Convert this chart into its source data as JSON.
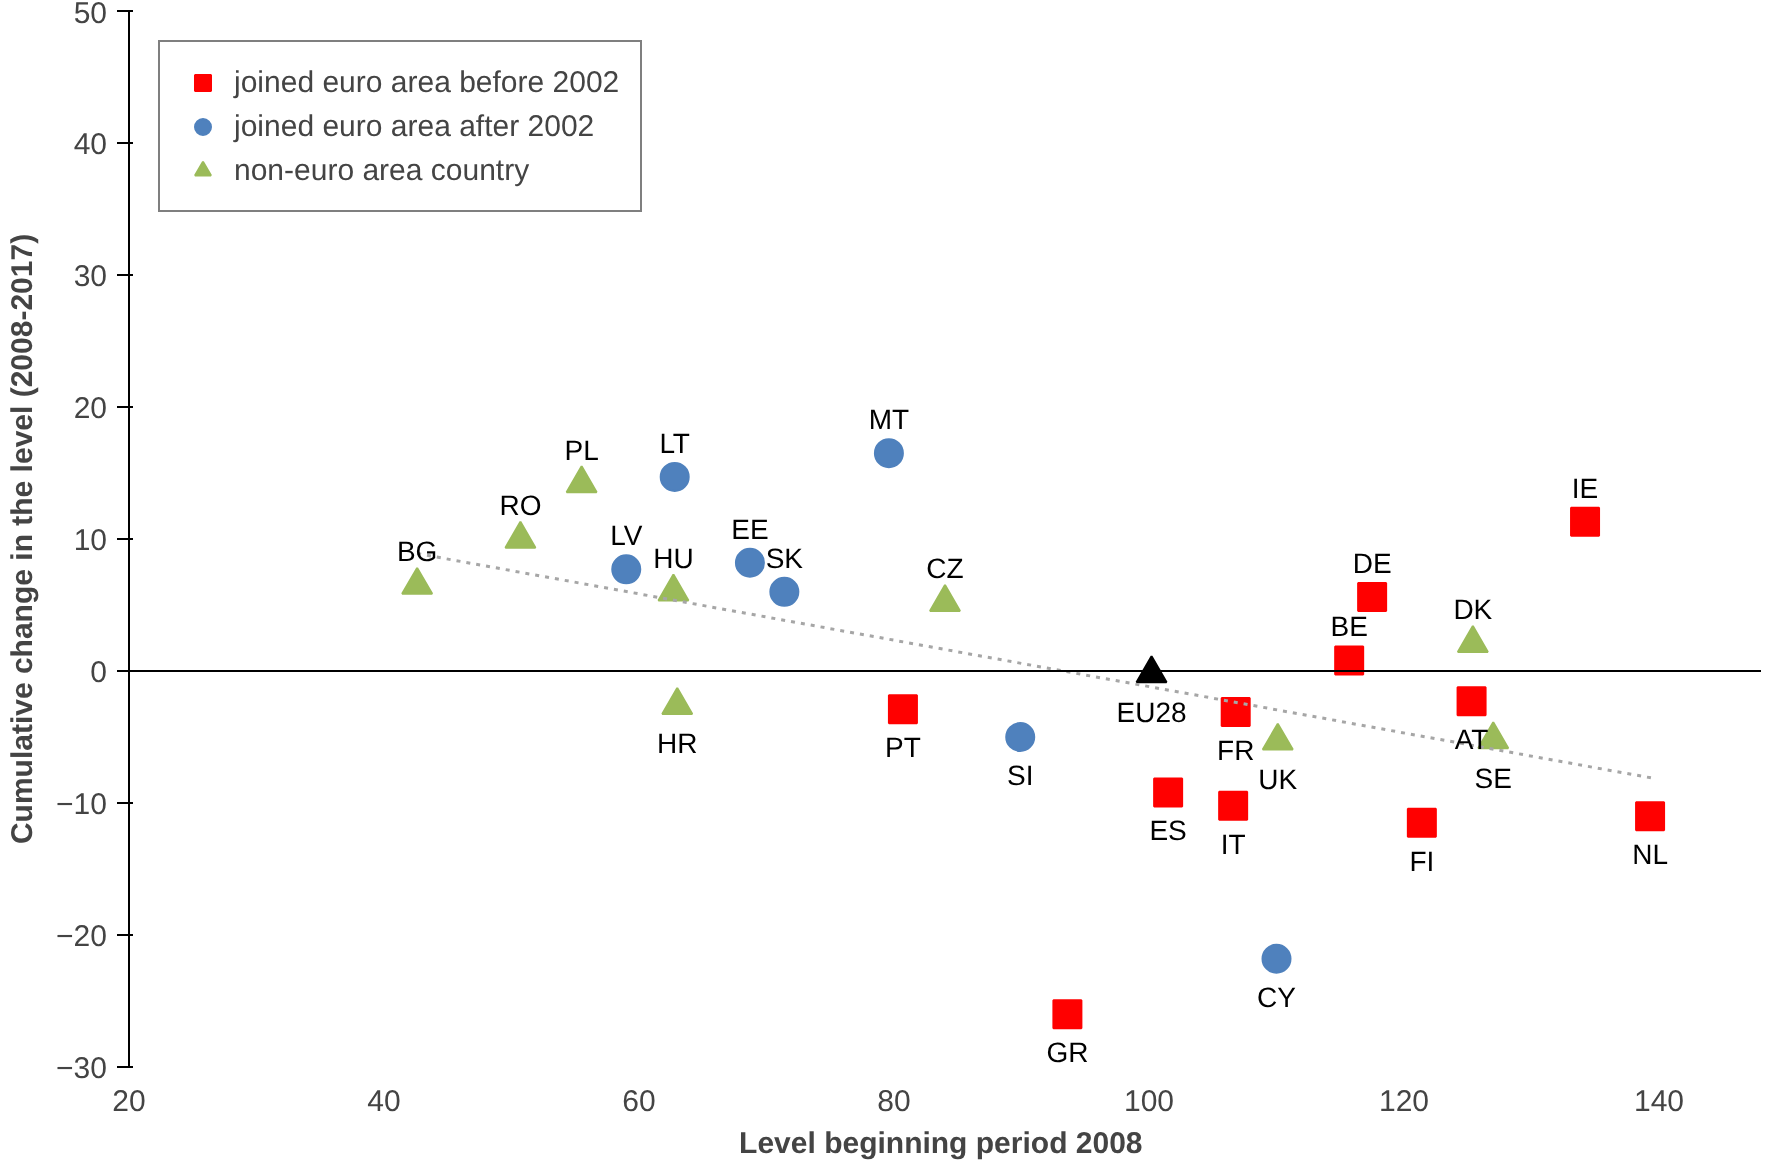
{
  "chart_data": {
    "type": "scatter",
    "xlabel": "Level beginning  period 2008",
    "ylabel": "Cumulative change in the level (2008-2017)",
    "xlim": [
      20,
      148
    ],
    "xticks": [
      20,
      40,
      60,
      80,
      100,
      120,
      140
    ],
    "ylim": [
      -30,
      50
    ],
    "yticks": [
      -30,
      -20,
      -10,
      0,
      10,
      20,
      30,
      40,
      50
    ],
    "grid": false,
    "legend": "top left",
    "ref_lines": [
      {
        "axis": "y",
        "value": 0,
        "color": "#000000"
      }
    ],
    "series": [
      {
        "name": "joined euro area before 2002",
        "color": "#ff0000",
        "marker": "square",
        "x": [
          80.7,
          93.6,
          101.5,
          106.6,
          106.8,
          115.7,
          117.5,
          121.4,
          125.3,
          134.2,
          139.3
        ],
        "values": [
          -2.9,
          -26.0,
          -9.2,
          -10.2,
          -3.1,
          0.8,
          5.6,
          -11.5,
          -2.3,
          11.3,
          -11.0
        ]
      },
      {
        "name": "joined euro area after 2002",
        "color": "#4f81bd",
        "marker": "circle",
        "x": [
          59.0,
          62.8,
          68.7,
          71.4,
          79.6,
          89.9,
          110.0
        ],
        "values": [
          7.7,
          14.7,
          8.2,
          6.0,
          16.5,
          -5.0,
          -21.8
        ]
      },
      {
        "name": "non-euro area country",
        "color": "#9bbb59",
        "marker": "triangle",
        "x": [
          42.6,
          50.7,
          55.5,
          62.7,
          63.0,
          84.0,
          110.1,
          125.4,
          127.0
        ],
        "values": [
          6.5,
          10.0,
          14.2,
          6.0,
          -2.6,
          5.2,
          -5.3,
          2.1,
          -5.2
        ]
      },
      {
        "color": "#000000",
        "marker": "triangle",
        "x": [
          100.2
        ],
        "values": [
          -0.2
        ]
      },
      {
        "type": "line",
        "color": "#a6a6a6",
        "line_style": "dotted",
        "marker": "none",
        "x": [
          42.6,
          139.4
        ],
        "values": [
          8.9,
          -8.1
        ]
      }
    ],
    "annotations": [
      {
        "text": "PT",
        "x": 80.7,
        "y": -2.9
      },
      {
        "text": "GR",
        "x": 93.6,
        "y": -26.0
      },
      {
        "text": "ES",
        "x": 101.5,
        "y": -9.2
      },
      {
        "text": "IT",
        "x": 106.6,
        "y": -10.2
      },
      {
        "text": "FR",
        "x": 106.8,
        "y": -3.1
      },
      {
        "text": "BE",
        "x": 115.7,
        "y": 0.8
      },
      {
        "text": "DE",
        "x": 117.5,
        "y": 5.6
      },
      {
        "text": "FI",
        "x": 121.4,
        "y": -11.5
      },
      {
        "text": "AT",
        "x": 125.3,
        "y": -2.3
      },
      {
        "text": "IE",
        "x": 134.2,
        "y": 11.3
      },
      {
        "text": "NL",
        "x": 139.3,
        "y": -11.0
      },
      {
        "text": "LV",
        "x": 59.0,
        "y": 7.7
      },
      {
        "text": "LT",
        "x": 62.8,
        "y": 14.7
      },
      {
        "text": "EE",
        "x": 68.7,
        "y": 8.2
      },
      {
        "text": "SK",
        "x": 71.4,
        "y": 6.0
      },
      {
        "text": "MT",
        "x": 79.6,
        "y": 16.5
      },
      {
        "text": "SI",
        "x": 89.9,
        "y": -5.0
      },
      {
        "text": "CY",
        "x": 110.0,
        "y": -21.8
      },
      {
        "text": "BG",
        "x": 42.6,
        "y": 6.5
      },
      {
        "text": "RO",
        "x": 50.7,
        "y": 10.0
      },
      {
        "text": "PL",
        "x": 55.5,
        "y": 14.2
      },
      {
        "text": "HU",
        "x": 62.7,
        "y": 6.0
      },
      {
        "text": "HR",
        "x": 63.0,
        "y": -2.6
      },
      {
        "text": "CZ",
        "x": 84.0,
        "y": 5.2
      },
      {
        "text": "UK",
        "x": 110.1,
        "y": -5.3
      },
      {
        "text": "DK",
        "x": 125.4,
        "y": 2.1
      },
      {
        "text": "SE",
        "x": 127.0,
        "y": -5.2
      },
      {
        "text": "EU28",
        "x": 100.2,
        "y": -0.2
      }
    ]
  }
}
